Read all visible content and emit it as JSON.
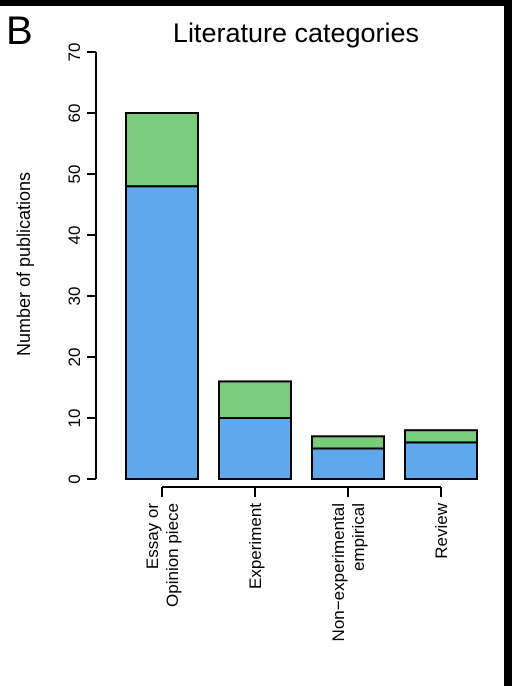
{
  "panel_label": "B",
  "chart_data": {
    "type": "bar",
    "stacked": true,
    "title": "Literature categories",
    "xlabel": "",
    "ylabel": "Number of publications",
    "ylim": [
      0,
      70
    ],
    "yticks": [
      "0",
      "10",
      "20",
      "30",
      "40",
      "50",
      "60",
      "70"
    ],
    "categories": [
      [
        "Essay or",
        "Opinion piece"
      ],
      [
        "Experiment"
      ],
      [
        "Non−experimental",
        "empirical"
      ],
      [
        "Review"
      ]
    ],
    "series": [
      {
        "color": "#5fa8ec",
        "values": [
          48,
          10,
          5,
          6
        ]
      },
      {
        "color": "#79cc79",
        "values": [
          12,
          6,
          2,
          2
        ]
      }
    ],
    "grid": false,
    "legend": "none"
  }
}
